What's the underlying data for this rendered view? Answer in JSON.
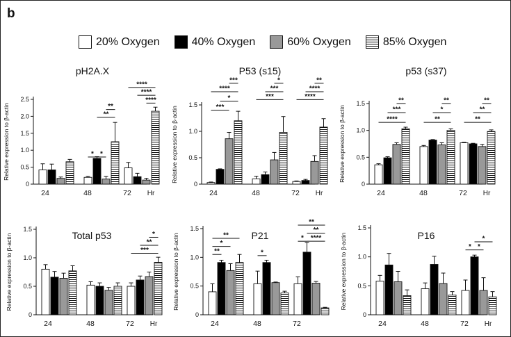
{
  "panel_letter": "b",
  "legend": [
    {
      "label": "20% Oxygen",
      "fill": "#ffffff"
    },
    {
      "label": "40% Oxygen",
      "fill": "#000000"
    },
    {
      "label": "60% Oxygen",
      "fill": "#999999"
    },
    {
      "label": "85% Oxygen",
      "fill": "hatch"
    }
  ],
  "colors": {
    "ox20": "#ffffff",
    "ox40": "#000000",
    "ox60": "#999999",
    "ox85": "hatch",
    "axis": "#111111"
  },
  "chart_data": [
    {
      "type": "bar",
      "title": "pH2A.X",
      "ylabel": "Relative expression to β-actin",
      "categories": [
        "24",
        "48",
        "72"
      ],
      "x_unit": "Hr",
      "ylim": [
        0,
        2.5
      ],
      "yticks": [
        "0",
        "0.5",
        "1.0",
        "1.5",
        "2.0",
        "2.5"
      ],
      "ytick_values": [
        0,
        0.5,
        1.0,
        1.5,
        2.0,
        2.5
      ],
      "series": [
        {
          "name": "20% Oxygen",
          "values": [
            0.42,
            0.2,
            0.48
          ],
          "errors": [
            0.18,
            0.03,
            0.16
          ]
        },
        {
          "name": "40% Oxygen",
          "values": [
            0.42,
            0.76,
            0.22
          ],
          "errors": [
            0.17,
            0.05,
            0.1
          ]
        },
        {
          "name": "60% Oxygen",
          "values": [
            0.17,
            0.15,
            0.12
          ],
          "errors": [
            0.04,
            0.08,
            0.05
          ]
        },
        {
          "name": "85% Oxygen",
          "values": [
            0.66,
            1.25,
            2.15
          ],
          "errors": [
            0.07,
            0.57,
            0.12
          ]
        }
      ],
      "significance": [
        {
          "group": 1,
          "from": 0,
          "to": 1,
          "label": "*",
          "y": 0.8
        },
        {
          "group": 1,
          "from": 1,
          "to": 2,
          "label": "*",
          "y": 0.8
        },
        {
          "group": 1,
          "from": 1,
          "to": 3,
          "label": "**",
          "y": 1.97
        },
        {
          "group": 1,
          "from": 2,
          "to": 3,
          "label": "**",
          "y": 2.2
        },
        {
          "group": 2,
          "from": 0,
          "to": 3,
          "label": "****",
          "y": 2.85
        },
        {
          "group": 2,
          "from": 1,
          "to": 3,
          "label": "****",
          "y": 2.62
        },
        {
          "group": 2,
          "from": 2,
          "to": 3,
          "label": "****",
          "y": 2.39
        }
      ]
    },
    {
      "type": "bar",
      "title": "P53 (s15)",
      "ylabel": "Relative expression to β-actin",
      "categories": [
        "24",
        "48",
        "72"
      ],
      "x_unit": "Hr",
      "ylim": [
        0,
        1.5
      ],
      "yticks": [
        "0",
        "0.5",
        "1.0",
        "1.5"
      ],
      "ytick_values": [
        0,
        0.5,
        1.0,
        1.5
      ],
      "series": [
        {
          "name": "20% Oxygen",
          "values": [
            0.03,
            0.1,
            0.05
          ],
          "errors": [
            0.01,
            0.05,
            0.01
          ]
        },
        {
          "name": "40% Oxygen",
          "values": [
            0.28,
            0.18,
            0.07
          ],
          "errors": [
            0.01,
            0.05,
            0.02
          ]
        },
        {
          "name": "60% Oxygen",
          "values": [
            0.86,
            0.46,
            0.43
          ],
          "errors": [
            0.12,
            0.14,
            0.11
          ]
        },
        {
          "name": "85% Oxygen",
          "values": [
            1.2,
            0.98,
            1.08
          ],
          "errors": [
            0.18,
            0.3,
            0.16
          ]
        }
      ],
      "significance": [
        {
          "group": 0,
          "from": 0,
          "to": 2,
          "label": "***",
          "y": 1.4
        },
        {
          "group": 0,
          "from": 0,
          "to": 3,
          "label": "****",
          "y": 1.75
        },
        {
          "group": 0,
          "from": 1,
          "to": 3,
          "label": "*",
          "y": 1.57
        },
        {
          "group": 0,
          "from": 2,
          "to": 3,
          "label": "***",
          "y": 1.91
        },
        {
          "group": 1,
          "from": 0,
          "to": 3,
          "label": "***",
          "y": 1.6
        },
        {
          "group": 1,
          "from": 1,
          "to": 3,
          "label": "***",
          "y": 1.75
        },
        {
          "group": 1,
          "from": 2,
          "to": 3,
          "label": "*",
          "y": 1.91
        },
        {
          "group": 2,
          "from": 0,
          "to": 3,
          "label": "****",
          "y": 1.6
        },
        {
          "group": 2,
          "from": 1,
          "to": 3,
          "label": "****",
          "y": 1.75
        },
        {
          "group": 2,
          "from": 2,
          "to": 3,
          "label": "**",
          "y": 1.91
        }
      ]
    },
    {
      "type": "bar",
      "title": "p53 (s37)",
      "ylabel": "Relative expression to β-actin",
      "categories": [
        "24",
        "48",
        "72"
      ],
      "x_unit": "Hr",
      "ylim": [
        0,
        1.5
      ],
      "yticks": [
        "0",
        "0.5",
        "1.0",
        "1.5"
      ],
      "ytick_values": [
        0,
        0.5,
        1.0,
        1.5
      ],
      "series": [
        {
          "name": "20% Oxygen",
          "values": [
            0.36,
            0.7,
            0.77
          ],
          "errors": [
            0.02,
            0.02,
            0.01
          ]
        },
        {
          "name": "40% Oxygen",
          "values": [
            0.49,
            0.82,
            0.75
          ],
          "errors": [
            0.02,
            0.01,
            0.01
          ]
        },
        {
          "name": "60% Oxygen",
          "values": [
            0.74,
            0.73,
            0.7
          ],
          "errors": [
            0.03,
            0.04,
            0.04
          ]
        },
        {
          "name": "85% Oxygen",
          "values": [
            1.03,
            1.0,
            0.98
          ],
          "errors": [
            0.03,
            0.03,
            0.03
          ]
        }
      ],
      "significance": [
        {
          "group": 0,
          "from": 0,
          "to": 3,
          "label": "****",
          "y": 1.15
        },
        {
          "group": 0,
          "from": 1,
          "to": 3,
          "label": "***",
          "y": 1.33
        },
        {
          "group": 0,
          "from": 2,
          "to": 3,
          "label": "**",
          "y": 1.5
        },
        {
          "group": 1,
          "from": 0,
          "to": 3,
          "label": "**",
          "y": 1.15
        },
        {
          "group": 1,
          "from": 1,
          "to": 3,
          "label": "*",
          "y": 1.33
        },
        {
          "group": 1,
          "from": 2,
          "to": 3,
          "label": "**",
          "y": 1.5
        },
        {
          "group": 2,
          "from": 0,
          "to": 3,
          "label": "**",
          "y": 1.15
        },
        {
          "group": 2,
          "from": 1,
          "to": 3,
          "label": "**",
          "y": 1.33
        },
        {
          "group": 2,
          "from": 2,
          "to": 3,
          "label": "**",
          "y": 1.5
        }
      ]
    },
    {
      "type": "bar",
      "title": "Total p53",
      "ylabel": "Relative expression to β-actin",
      "categories": [
        "24",
        "48",
        "72"
      ],
      "x_unit": "Hr",
      "ylim": [
        0,
        1.5
      ],
      "yticks": [
        "0",
        "0.5",
        "1.0",
        "1.5"
      ],
      "ytick_values": [
        0,
        0.5,
        1.0,
        1.5
      ],
      "series": [
        {
          "name": "20% Oxygen",
          "values": [
            0.8,
            0.52,
            0.5
          ],
          "errors": [
            0.08,
            0.06,
            0.06
          ]
        },
        {
          "name": "40% Oxygen",
          "values": [
            0.66,
            0.5,
            0.61
          ],
          "errors": [
            0.1,
            0.06,
            0.07
          ]
        },
        {
          "name": "60% Oxygen",
          "values": [
            0.64,
            0.43,
            0.67
          ],
          "errors": [
            0.09,
            0.05,
            0.08
          ]
        },
        {
          "name": "85% Oxygen",
          "values": [
            0.77,
            0.5,
            0.92
          ],
          "errors": [
            0.09,
            0.06,
            0.09
          ]
        }
      ],
      "significance": [
        {
          "group": 2,
          "from": 0,
          "to": 3,
          "label": "***",
          "y": 1.08
        },
        {
          "group": 2,
          "from": 1,
          "to": 3,
          "label": "**",
          "y": 1.22
        },
        {
          "group": 2,
          "from": 2,
          "to": 3,
          "label": "*",
          "y": 1.36
        }
      ]
    },
    {
      "type": "bar",
      "title": "P21",
      "ylabel": "Relative expression to β-actin",
      "categories": [
        "24",
        "48",
        "72"
      ],
      "x_unit": "",
      "ylim": [
        0,
        1.5
      ],
      "yticks": [
        "0",
        "0.5",
        "1.0",
        "1.5"
      ],
      "ytick_values": [
        0,
        0.5,
        1.0,
        1.5
      ],
      "series": [
        {
          "name": "20% Oxygen",
          "values": [
            0.4,
            0.54,
            0.54
          ],
          "errors": [
            0.14,
            0.22,
            0.12
          ]
        },
        {
          "name": "40% Oxygen",
          "values": [
            0.91,
            0.91,
            1.09
          ],
          "errors": [
            0.04,
            0.04,
            0.17
          ]
        },
        {
          "name": "60% Oxygen",
          "values": [
            0.77,
            0.56,
            0.55
          ],
          "errors": [
            0.12,
            0.01,
            0.03
          ]
        },
        {
          "name": "85% Oxygen",
          "values": [
            0.91,
            0.38,
            0.12
          ],
          "errors": [
            0.14,
            0.03,
            0.01
          ]
        }
      ],
      "significance": [
        {
          "group": 0,
          "from": 0,
          "to": 1,
          "label": "**",
          "y": 1.05
        },
        {
          "group": 0,
          "from": 0,
          "to": 2,
          "label": "*",
          "y": 1.19
        },
        {
          "group": 0,
          "from": 0,
          "to": 3,
          "label": "**",
          "y": 1.33
        },
        {
          "group": 1,
          "from": 0,
          "to": 1,
          "label": "*",
          "y": 1.03
        },
        {
          "group": 2,
          "from": 0,
          "to": 3,
          "label": "**",
          "y": 1.56
        },
        {
          "group": 2,
          "from": 1,
          "to": 3,
          "label": "**",
          "y": 1.42
        },
        {
          "group": 2,
          "from": 0,
          "to": 1,
          "label": "*",
          "y": 1.28
        },
        {
          "group": 2,
          "from": 1,
          "to": 3,
          "label": "****",
          "y": 1.28
        }
      ]
    },
    {
      "type": "bar",
      "title": "P16",
      "ylabel": "Relative expression to β-actin",
      "categories": [
        "24",
        "48",
        "72"
      ],
      "x_unit": "Hr",
      "ylim": [
        0,
        1.5
      ],
      "yticks": [
        "0",
        "0.5",
        "1.0",
        "1.5"
      ],
      "ytick_values": [
        0,
        0.5,
        1.0,
        1.5
      ],
      "series": [
        {
          "name": "20% Oxygen",
          "values": [
            0.58,
            0.45,
            0.42
          ],
          "errors": [
            0.1,
            0.1,
            0.18
          ]
        },
        {
          "name": "40% Oxygen",
          "values": [
            0.86,
            0.87,
            1.0
          ],
          "errors": [
            0.2,
            0.14,
            0.03
          ]
        },
        {
          "name": "60% Oxygen",
          "values": [
            0.57,
            0.54,
            0.42
          ],
          "errors": [
            0.18,
            0.18,
            0.22
          ]
        },
        {
          "name": "85% Oxygen",
          "values": [
            0.33,
            0.34,
            0.31
          ],
          "errors": [
            0.1,
            0.06,
            0.09
          ]
        }
      ],
      "significance": [
        {
          "group": 2,
          "from": 0,
          "to": 1,
          "label": "*",
          "y": 1.12
        },
        {
          "group": 2,
          "from": 1,
          "to": 2,
          "label": "*",
          "y": 1.12
        },
        {
          "group": 2,
          "from": 1,
          "to": 3,
          "label": "*",
          "y": 1.26
        }
      ]
    }
  ]
}
